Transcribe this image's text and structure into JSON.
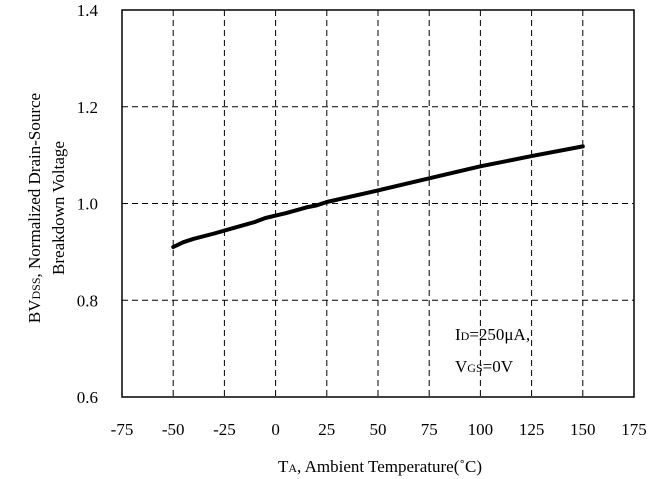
{
  "chart_data": {
    "type": "line",
    "title": "",
    "xlabel": {
      "main": "T",
      "sub": "A",
      "rest": ", Ambient Temperature(˚C)"
    },
    "ylabel": {
      "line1_main": "BV",
      "line1_sub": "DSS",
      "line1_rest": ", Normalized Drain-Source",
      "line2": "Breakdown Voltage"
    },
    "xlim": [
      -75,
      175
    ],
    "ylim": [
      0.6,
      1.4
    ],
    "x_ticks": [
      -75,
      -50,
      -25,
      0,
      25,
      50,
      75,
      100,
      125,
      150,
      175
    ],
    "y_ticks": [
      0.6,
      0.8,
      1.0,
      1.2,
      1.4
    ],
    "x_tick_labels": [
      "-75",
      "-50",
      "-25",
      "0",
      "25",
      "50",
      "75",
      "100",
      "125",
      "150",
      "175"
    ],
    "y_tick_labels": [
      "0.6",
      "0.8",
      "1.0",
      "1.2",
      "1.4"
    ],
    "grid": true,
    "series": [
      {
        "x": [
          -50,
          -45,
          -40,
          -30,
          -20,
          -10,
          -5,
          0,
          5,
          10,
          15,
          20,
          25,
          50,
          75,
          100,
          125,
          150
        ],
        "y": [
          0.91,
          0.92,
          0.927,
          0.938,
          0.95,
          0.962,
          0.97,
          0.975,
          0.98,
          0.986,
          0.992,
          0.996,
          1.003,
          1.027,
          1.052,
          1.077,
          1.098,
          1.118
        ]
      }
    ],
    "annotations": {
      "line1_main": "I",
      "line1_sub": "D",
      "line1_rest": "=250μA,",
      "line2_main": "V",
      "line2_sub": "GS",
      "line2_rest": "=0V"
    }
  }
}
